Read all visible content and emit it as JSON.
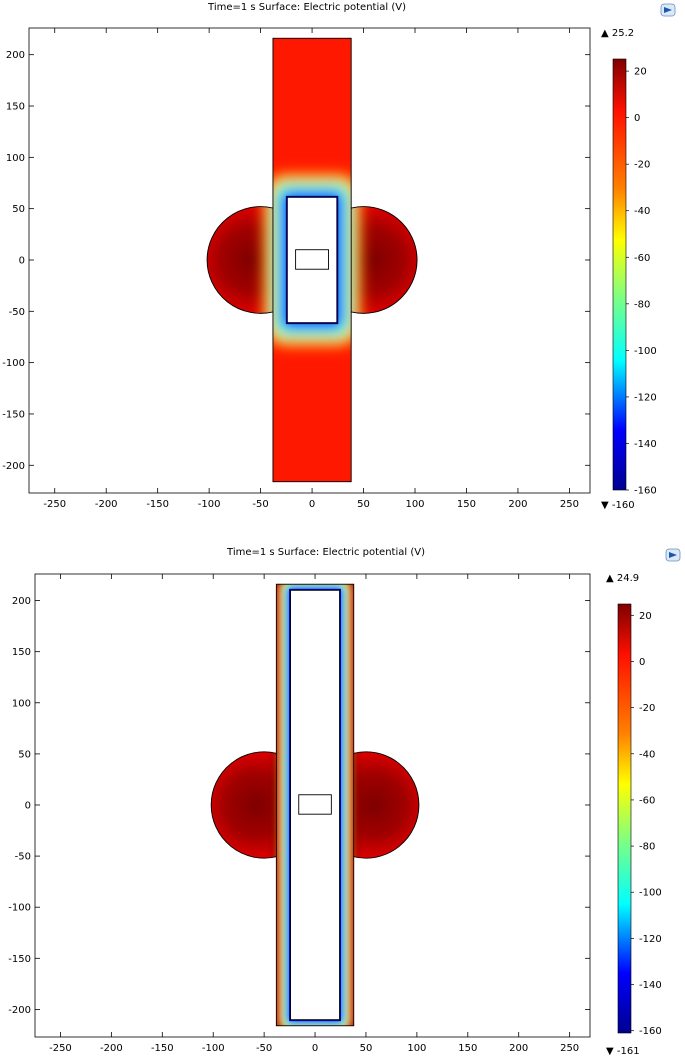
{
  "chart_data": [
    {
      "type": "heatmap",
      "title": "Time=1 s   Surface: Electric potential (V)",
      "x_ticks": [
        -250,
        -200,
        -150,
        -100,
        -50,
        0,
        50,
        100,
        150,
        200,
        250
      ],
      "y_ticks": [
        -200,
        -150,
        -100,
        -50,
        0,
        50,
        100,
        150,
        200
      ],
      "xlim": [
        -275,
        270
      ],
      "ylim": [
        -227,
        226
      ],
      "grid": false,
      "colorbar": {
        "max_label": "▲ 25.2",
        "min_label": "▼ -160",
        "ticks": [
          20,
          0,
          -20,
          -40,
          -60,
          -80,
          -100,
          -120,
          -140,
          -160
        ],
        "range": [
          -160,
          25.2
        ]
      },
      "domain": {
        "strip_x": [
          -38,
          38
        ],
        "strip_y": [
          -216,
          216
        ],
        "side_disk_radius": 52,
        "side_disk_centers": [
          [
            -50,
            0
          ],
          [
            50,
            0
          ]
        ],
        "inner_hole_x": [
          -24,
          24
        ],
        "inner_hole_y": [
          -61,
          61
        ],
        "small_rect_x": [
          -16,
          16
        ],
        "small_rect_y": [
          -9,
          10
        ]
      }
    },
    {
      "type": "heatmap",
      "title": "Time=1 s   Surface: Electric potential (V)",
      "x_ticks": [
        -250,
        -200,
        -150,
        -100,
        -50,
        0,
        50,
        100,
        150,
        200,
        250
      ],
      "y_ticks": [
        -200,
        -150,
        -100,
        -50,
        0,
        50,
        100,
        150,
        200
      ],
      "xlim": [
        -275,
        270
      ],
      "ylim": [
        -227,
        226
      ],
      "grid": false,
      "colorbar": {
        "max_label": "▲ 24.9",
        "min_label": "▼ -161",
        "ticks": [
          20,
          0,
          -20,
          -40,
          -60,
          -80,
          -100,
          -120,
          -140,
          -160
        ],
        "range": [
          -161,
          24.9
        ]
      },
      "domain": {
        "strip_x": [
          -38,
          38
        ],
        "strip_y": [
          -216,
          216
        ],
        "side_disk_radius": 52,
        "side_disk_centers": [
          [
            -50,
            0
          ],
          [
            50,
            0
          ]
        ],
        "inner_hole_x": [
          -24,
          24
        ],
        "inner_hole_y": [
          -210,
          210
        ],
        "small_rect_x": [
          -16,
          16
        ],
        "small_rect_y": [
          -9,
          10
        ]
      }
    }
  ],
  "colors": {
    "dark_red": "#7f0000",
    "red": "#ff1000",
    "orange": "#ff8000",
    "yellow": "#ffff00",
    "cyan": "#00ffff",
    "blue": "#0000ff",
    "dark_blue": "#00008f"
  },
  "icons": {
    "corner": "comsol-logo-icon"
  }
}
